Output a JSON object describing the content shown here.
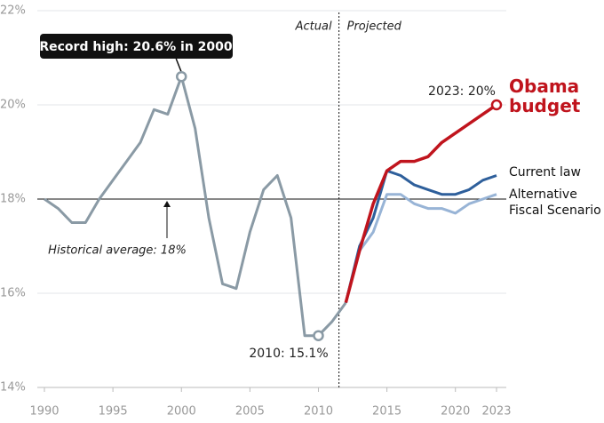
{
  "chart_data": {
    "type": "line",
    "xlim": [
      1990,
      2023
    ],
    "xticks": [
      1990,
      1995,
      2000,
      2005,
      2010,
      2015,
      2020,
      2023
    ],
    "ylim": [
      14,
      22
    ],
    "yticks": [
      {
        "value": 14,
        "label": "14%"
      },
      {
        "value": 16,
        "label": "16%"
      },
      {
        "value": 18,
        "label": "18%"
      },
      {
        "value": 20,
        "label": "20%"
      },
      {
        "value": 22,
        "label": "22%"
      }
    ],
    "grid": true,
    "average": 18,
    "divider_x": 2011.5,
    "divider_labels": [
      "Actual",
      "Projected"
    ],
    "series": [
      {
        "color": "#8a9aa5",
        "x": [
          1990,
          1991,
          1992,
          1993,
          1994,
          1995,
          1996,
          1997,
          1998,
          1999,
          2000,
          2001,
          2002,
          2003,
          2004,
          2005,
          2006,
          2007,
          2008,
          2009,
          2010,
          2011,
          2012
        ],
        "values": [
          18.0,
          17.8,
          17.5,
          17.5,
          18.0,
          18.4,
          18.8,
          19.2,
          19.9,
          19.8,
          20.6,
          19.5,
          17.6,
          16.2,
          16.1,
          17.3,
          18.2,
          18.5,
          17.6,
          15.1,
          15.1,
          15.4,
          15.8
        ]
      },
      {
        "name": "Alternative Fiscal Scenario",
        "color": "#98b4d6",
        "x": [
          2012,
          2013,
          2014,
          2015,
          2016,
          2017,
          2018,
          2019,
          2020,
          2021,
          2022,
          2023
        ],
        "values": [
          15.8,
          16.9,
          17.3,
          18.1,
          18.1,
          17.9,
          17.8,
          17.8,
          17.7,
          17.9,
          18.0,
          18.1
        ]
      },
      {
        "name": "Current law",
        "color": "#2e5f9b",
        "x": [
          2012,
          2013,
          2014,
          2015,
          2016,
          2017,
          2018,
          2019,
          2020,
          2021,
          2022,
          2023
        ],
        "values": [
          15.8,
          17.0,
          17.6,
          18.6,
          18.5,
          18.3,
          18.2,
          18.1,
          18.1,
          18.2,
          18.4,
          18.5
        ]
      },
      {
        "name": "Obama budget",
        "color": "#c0141d",
        "x": [
          2012,
          2013,
          2014,
          2015,
          2016,
          2017,
          2018,
          2019,
          2020,
          2021,
          2022,
          2023
        ],
        "values": [
          15.8,
          16.9,
          17.9,
          18.6,
          18.8,
          18.8,
          18.9,
          19.2,
          19.4,
          19.6,
          19.8,
          20.0
        ]
      }
    ],
    "annotations": [
      "Record high: 20.6% in 2000",
      "2010: 15.1%",
      "2023: 20%",
      "Historical average: 18%"
    ]
  }
}
